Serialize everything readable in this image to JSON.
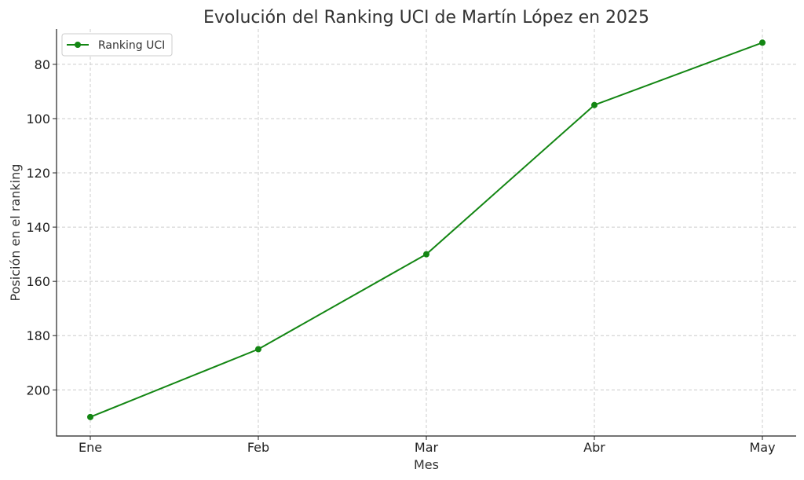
{
  "chart_data": {
    "type": "line",
    "title": "Evolución del Ranking UCI de Martín López en 2025",
    "xlabel": "Mes",
    "ylabel": "Posición en el ranking",
    "categories": [
      "Ene",
      "Feb",
      "Mar",
      "Abr",
      "May"
    ],
    "series": [
      {
        "name": "Ranking UCI",
        "values": [
          210,
          185,
          150,
          95,
          72
        ],
        "color": "#138613"
      }
    ],
    "ylim": [
      67,
      217
    ],
    "y_inverted": true,
    "yticks": [
      80,
      100,
      120,
      140,
      160,
      180,
      200
    ],
    "grid": true,
    "legend_position": "top-left"
  }
}
